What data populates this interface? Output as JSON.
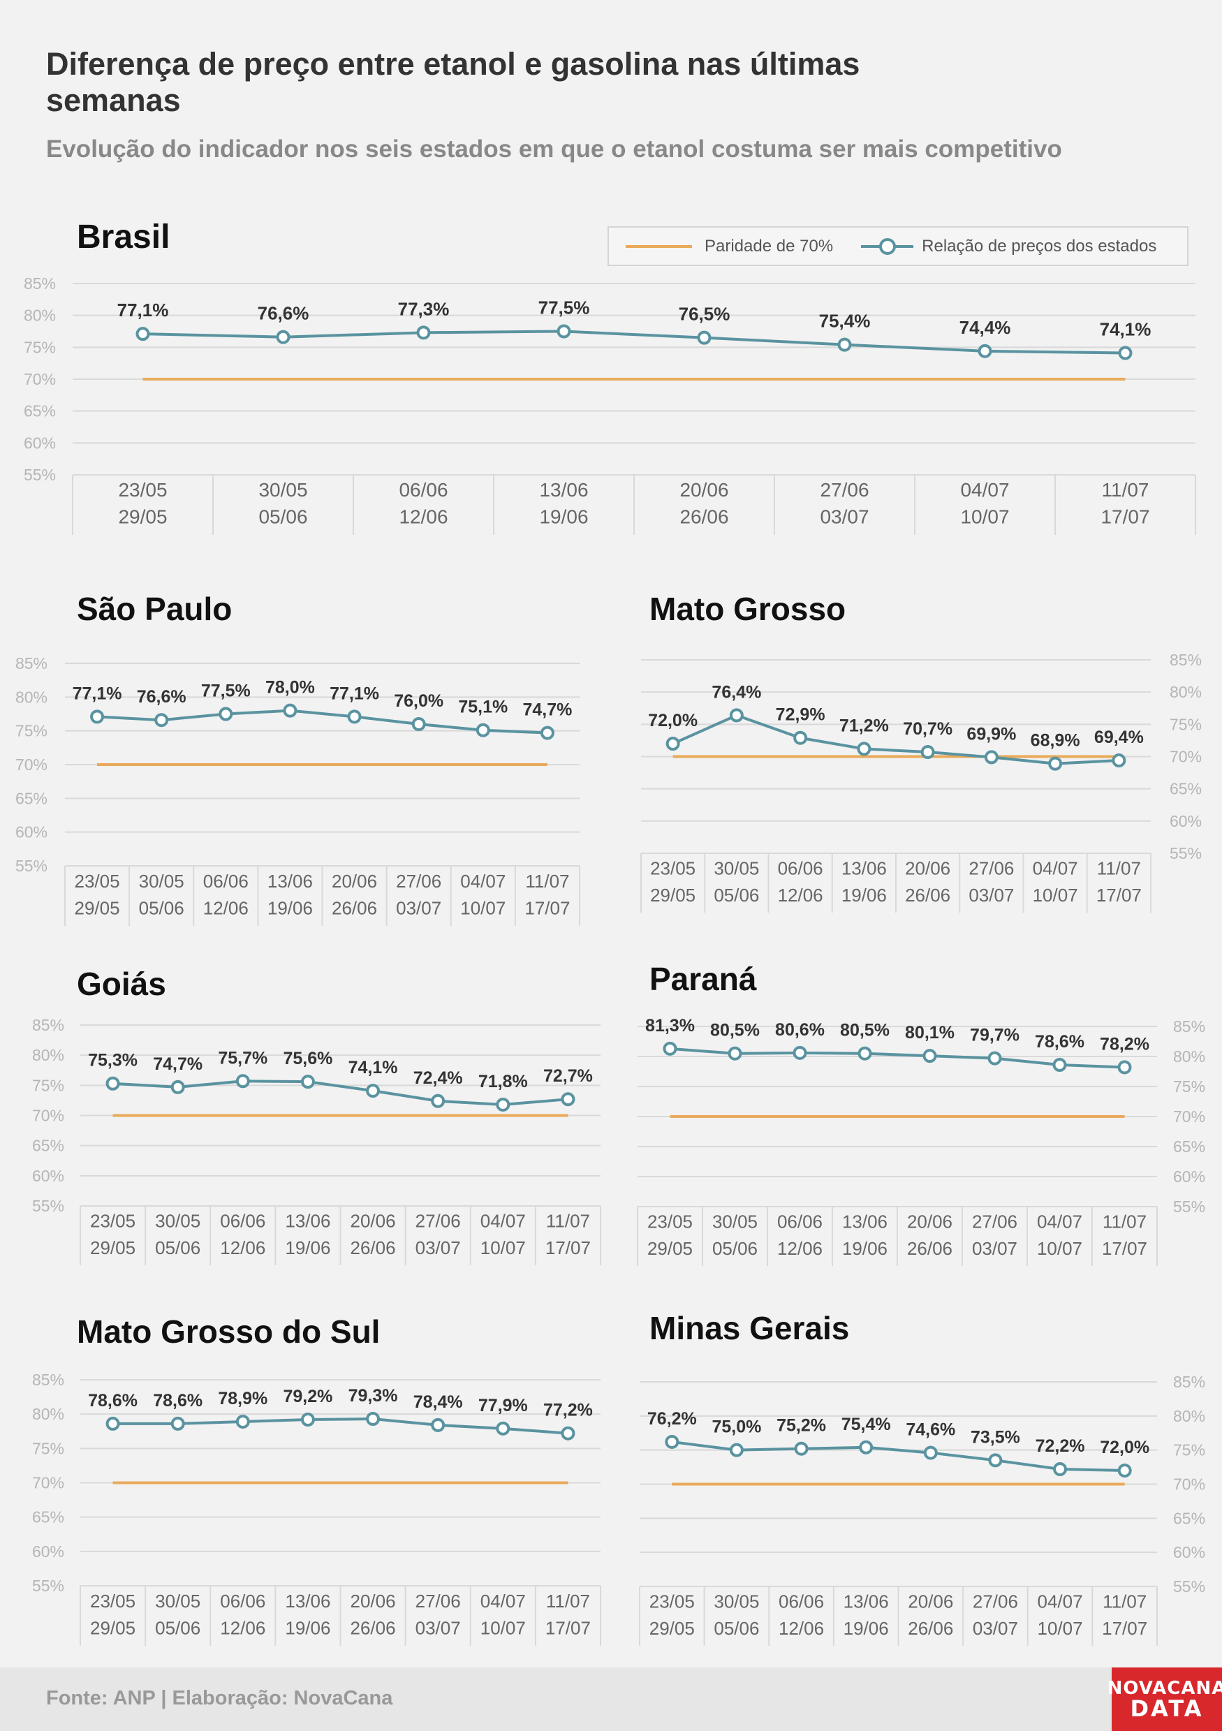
{
  "header": {
    "title": "Diferença de preço entre etanol e gasolina nas últimas semanas",
    "subtitle": "Evolução do indicador nos seis estados em que o etanol costuma ser mais competitivo"
  },
  "legend": {
    "parity_label": "Paridade de 70%",
    "ratio_label": "Relação de preços dos estados"
  },
  "footer": {
    "source": "Fonte: ANP | Elaboração: NovaCana",
    "logo_line1": "NOVACANA",
    "logo_line2": "DATA"
  },
  "colors": {
    "parity": "#e9aa5a",
    "ratio": "#5a93a0",
    "grid": "#d9d9d9"
  },
  "chart_data": [
    {
      "type": "line",
      "title": "Brasil",
      "axis_side": "left",
      "categories": [
        [
          "23/05",
          "29/05"
        ],
        [
          "30/05",
          "05/06"
        ],
        [
          "06/06",
          "12/06"
        ],
        [
          "13/06",
          "19/06"
        ],
        [
          "20/06",
          "26/06"
        ],
        [
          "27/06",
          "03/07"
        ],
        [
          "04/07",
          "10/07"
        ],
        [
          "11/07",
          "17/07"
        ]
      ],
      "ylim": [
        55,
        85
      ],
      "yticks": [
        "55%",
        "60%",
        "65%",
        "70%",
        "75%",
        "80%",
        "85%"
      ],
      "parity": 70,
      "values": [
        77.1,
        76.6,
        77.3,
        77.5,
        76.5,
        75.4,
        74.4,
        74.1
      ],
      "labels": [
        "77,1%",
        "76,6%",
        "77,3%",
        "77,5%",
        "76,5%",
        "75,4%",
        "74,4%",
        "74,1%"
      ]
    },
    {
      "type": "line",
      "title": "São Paulo",
      "axis_side": "left",
      "categories": [
        [
          "23/05",
          "29/05"
        ],
        [
          "30/05",
          "05/06"
        ],
        [
          "06/06",
          "12/06"
        ],
        [
          "13/06",
          "19/06"
        ],
        [
          "20/06",
          "26/06"
        ],
        [
          "27/06",
          "03/07"
        ],
        [
          "04/07",
          "10/07"
        ],
        [
          "11/07",
          "17/07"
        ]
      ],
      "ylim": [
        55,
        85
      ],
      "yticks": [
        "55%",
        "60%",
        "65%",
        "70%",
        "75%",
        "80%",
        "85%"
      ],
      "parity": 70,
      "values": [
        77.1,
        76.6,
        77.5,
        78.0,
        77.1,
        76.0,
        75.1,
        74.7
      ],
      "labels": [
        "77,1%",
        "76,6%",
        "77,5%",
        "78,0%",
        "77,1%",
        "76,0%",
        "75,1%",
        "74,7%"
      ]
    },
    {
      "type": "line",
      "title": "Mato Grosso",
      "axis_side": "right",
      "categories": [
        [
          "23/05",
          "29/05"
        ],
        [
          "30/05",
          "05/06"
        ],
        [
          "06/06",
          "12/06"
        ],
        [
          "13/06",
          "19/06"
        ],
        [
          "20/06",
          "26/06"
        ],
        [
          "27/06",
          "03/07"
        ],
        [
          "04/07",
          "10/07"
        ],
        [
          "11/07",
          "17/07"
        ]
      ],
      "ylim": [
        55,
        85
      ],
      "yticks": [
        "55%",
        "60%",
        "65%",
        "70%",
        "75%",
        "80%",
        "85%"
      ],
      "parity": 70,
      "values": [
        72.0,
        76.4,
        72.9,
        71.2,
        70.7,
        69.9,
        68.9,
        69.4
      ],
      "labels": [
        "72,0%",
        "76,4%",
        "72,9%",
        "71,2%",
        "70,7%",
        "69,9%",
        "68,9%",
        "69,4%"
      ]
    },
    {
      "type": "line",
      "title": "Goiás",
      "axis_side": "left",
      "categories": [
        [
          "23/05",
          "29/05"
        ],
        [
          "30/05",
          "05/06"
        ],
        [
          "06/06",
          "12/06"
        ],
        [
          "13/06",
          "19/06"
        ],
        [
          "20/06",
          "26/06"
        ],
        [
          "27/06",
          "03/07"
        ],
        [
          "04/07",
          "10/07"
        ],
        [
          "11/07",
          "17/07"
        ]
      ],
      "ylim": [
        55,
        85
      ],
      "yticks": [
        "55%",
        "60%",
        "65%",
        "70%",
        "75%",
        "80%",
        "85%"
      ],
      "parity": 70,
      "values": [
        75.3,
        74.7,
        75.7,
        75.6,
        74.1,
        72.4,
        71.8,
        72.7
      ],
      "labels": [
        "75,3%",
        "74,7%",
        "75,7%",
        "75,6%",
        "74,1%",
        "72,4%",
        "71,8%",
        "72,7%"
      ]
    },
    {
      "type": "line",
      "title": "Paraná",
      "axis_side": "right",
      "categories": [
        [
          "23/05",
          "29/05"
        ],
        [
          "30/05",
          "05/06"
        ],
        [
          "06/06",
          "12/06"
        ],
        [
          "13/06",
          "19/06"
        ],
        [
          "20/06",
          "26/06"
        ],
        [
          "27/06",
          "03/07"
        ],
        [
          "04/07",
          "10/07"
        ],
        [
          "11/07",
          "17/07"
        ]
      ],
      "ylim": [
        55,
        85
      ],
      "yticks": [
        "55%",
        "60%",
        "65%",
        "70%",
        "75%",
        "80%",
        "85%"
      ],
      "parity": 70,
      "values": [
        81.3,
        80.5,
        80.6,
        80.5,
        80.1,
        79.7,
        78.6,
        78.2
      ],
      "labels": [
        "81,3%",
        "80,5%",
        "80,6%",
        "80,5%",
        "80,1%",
        "79,7%",
        "78,6%",
        "78,2%"
      ]
    },
    {
      "type": "line",
      "title": "Mato Grosso do Sul",
      "axis_side": "left",
      "categories": [
        [
          "23/05",
          "29/05"
        ],
        [
          "30/05",
          "05/06"
        ],
        [
          "06/06",
          "12/06"
        ],
        [
          "13/06",
          "19/06"
        ],
        [
          "20/06",
          "26/06"
        ],
        [
          "27/06",
          "03/07"
        ],
        [
          "04/07",
          "10/07"
        ],
        [
          "11/07",
          "17/07"
        ]
      ],
      "ylim": [
        55,
        85
      ],
      "yticks": [
        "55%",
        "60%",
        "65%",
        "70%",
        "75%",
        "80%",
        "85%"
      ],
      "parity": 70,
      "values": [
        78.6,
        78.6,
        78.9,
        79.2,
        79.3,
        78.4,
        77.9,
        77.2
      ],
      "labels": [
        "78,6%",
        "78,6%",
        "78,9%",
        "79,2%",
        "79,3%",
        "78,4%",
        "77,9%",
        "77,2%"
      ]
    },
    {
      "type": "line",
      "title": "Minas Gerais",
      "axis_side": "right",
      "categories": [
        [
          "23/05",
          "29/05"
        ],
        [
          "30/05",
          "05/06"
        ],
        [
          "06/06",
          "12/06"
        ],
        [
          "13/06",
          "19/06"
        ],
        [
          "20/06",
          "26/06"
        ],
        [
          "27/06",
          "03/07"
        ],
        [
          "04/07",
          "10/07"
        ],
        [
          "11/07",
          "17/07"
        ]
      ],
      "ylim": [
        55,
        85
      ],
      "yticks": [
        "55%",
        "60%",
        "65%",
        "70%",
        "75%",
        "80%",
        "85%"
      ],
      "parity": 70,
      "values": [
        76.2,
        75.0,
        75.2,
        75.4,
        74.6,
        73.5,
        72.2,
        72.0
      ],
      "labels": [
        "76,2%",
        "75,0%",
        "75,2%",
        "75,4%",
        "74,6%",
        "73,5%",
        "72,2%",
        "72,0%"
      ]
    }
  ]
}
